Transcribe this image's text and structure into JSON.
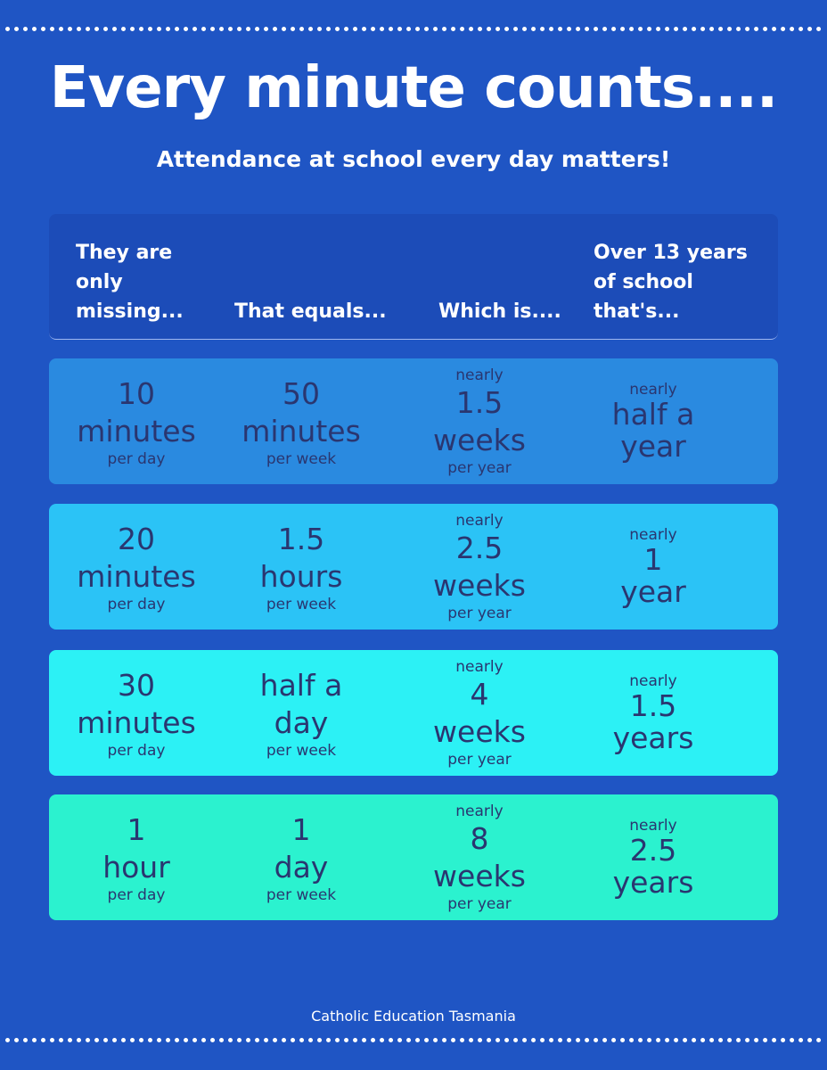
{
  "header": {
    "title": "Every minute counts....",
    "subtitle": "Attendance at school every day matters!"
  },
  "table": {
    "columns": [
      [
        "They are",
        "only",
        "missing..."
      ],
      [
        "That equals..."
      ],
      [
        "Which is...."
      ],
      [
        "Over 13 years",
        "of school",
        "that's..."
      ]
    ],
    "rows": [
      [
        {
          "amount": "10",
          "unit": "minutes",
          "period": "per day"
        },
        {
          "amount": "50",
          "unit": "minutes",
          "period": "per week"
        },
        {
          "qualifier": "nearly",
          "amount": "1.5",
          "unit": "weeks",
          "period": "per year"
        },
        {
          "qualifier": "nearly",
          "amount": "half a",
          "unit": "year"
        }
      ],
      [
        {
          "amount": "20",
          "unit": "minutes",
          "period": "per day"
        },
        {
          "amount": "1.5",
          "unit": "hours",
          "period": "per week"
        },
        {
          "qualifier": "nearly",
          "amount": "2.5",
          "unit": "weeks",
          "period": "per year"
        },
        {
          "qualifier": "nearly",
          "amount": "1",
          "unit": "year"
        }
      ],
      [
        {
          "amount": "30",
          "unit": "minutes",
          "period": "per day"
        },
        {
          "amount": "half a",
          "unit": "day",
          "period": "per week"
        },
        {
          "qualifier": "nearly",
          "amount": "4",
          "unit": "weeks",
          "period": "per year"
        },
        {
          "qualifier": "nearly",
          "amount": "1.5",
          "unit": "years"
        }
      ],
      [
        {
          "amount": "1",
          "unit": "hour",
          "period": "per day"
        },
        {
          "amount": "1",
          "unit": "day",
          "period": "per week"
        },
        {
          "qualifier": "nearly",
          "amount": "8",
          "unit": "weeks",
          "period": "per year"
        },
        {
          "qualifier": "nearly",
          "amount": "2.5",
          "unit": "years"
        }
      ]
    ]
  },
  "footer": {
    "text": "Catholic Education Tasmania"
  }
}
